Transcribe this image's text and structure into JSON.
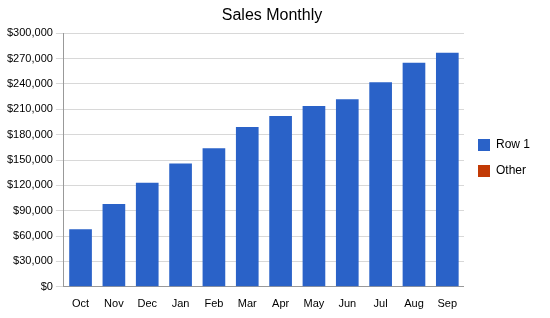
{
  "chart_data": {
    "type": "bar",
    "title": "Sales Monthly",
    "categories": [
      "Oct",
      "Nov",
      "Dec",
      "Jan",
      "Feb",
      "Mar",
      "Apr",
      "May",
      "Jun",
      "Jul",
      "Aug",
      "Sep"
    ],
    "series": [
      {
        "name": "Row 1",
        "color": "#2a62c8",
        "values": [
          68000,
          98000,
          123000,
          146000,
          164000,
          189000,
          202000,
          214000,
          222000,
          242000,
          265000,
          277000
        ]
      },
      {
        "name": "Other",
        "color": "#c23a05",
        "values": [
          0,
          0,
          0,
          0,
          0,
          0,
          0,
          0,
          0,
          0,
          0,
          0
        ]
      }
    ],
    "stacked": true,
    "ylim": [
      0,
      300000
    ],
    "yticks": [
      {
        "value": 0,
        "label": "$0"
      },
      {
        "value": 30000,
        "label": "$30,000"
      },
      {
        "value": 60000,
        "label": "$60,000"
      },
      {
        "value": 90000,
        "label": "$90,000"
      },
      {
        "value": 120000,
        "label": "$120,000"
      },
      {
        "value": 150000,
        "label": "$150,000"
      },
      {
        "value": 180000,
        "label": "$180,000"
      },
      {
        "value": 210000,
        "label": "$210,000"
      },
      {
        "value": 240000,
        "label": "$240,000"
      },
      {
        "value": 270000,
        "label": "$270,000"
      },
      {
        "value": 300000,
        "label": "$300,000"
      }
    ],
    "grid": true,
    "legend": "right"
  }
}
